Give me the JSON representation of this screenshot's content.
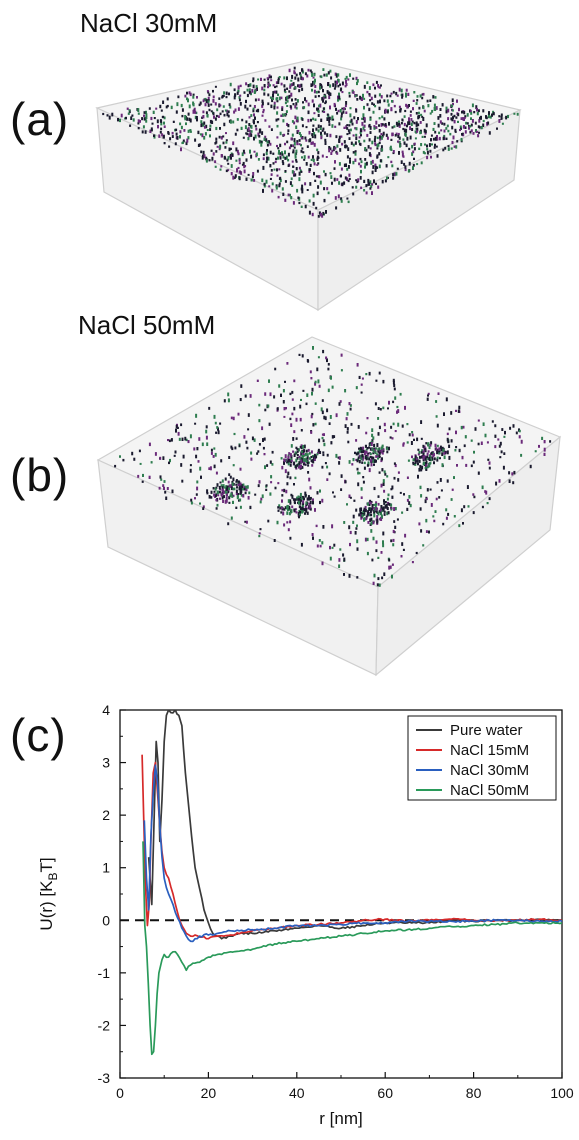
{
  "panels": {
    "a": {
      "letter": "(a)",
      "title": "NaCl 30mM"
    },
    "b": {
      "letter": "(b)",
      "title": "NaCl 50mM"
    },
    "c": {
      "letter": "(c)"
    }
  },
  "colors": {
    "box_edge": "#cfcfcf",
    "box_face": "#f1f1f1",
    "particle_dark": "#1a1a2e",
    "particle_green": "#2e7d4f",
    "particle_purple": "#6b2a7a"
  },
  "chart_data": {
    "type": "line",
    "xlabel": "r [nm]",
    "ylabel_main": "U(r) [K",
    "ylabel_sub": "B",
    "ylabel_tail": "T]",
    "xlim": [
      0,
      100
    ],
    "ylim": [
      -3,
      4
    ],
    "x_ticks": [
      0,
      20,
      40,
      60,
      80,
      100
    ],
    "y_ticks": [
      -3,
      -2,
      -1,
      0,
      1,
      2,
      3,
      4
    ],
    "reference_line": {
      "y": 0,
      "style": "dashed"
    },
    "legend_position": "top-right",
    "series": [
      {
        "name": "Pure water",
        "color": "#3a3a3a",
        "x": [
          6.5,
          7.2,
          7.8,
          8.2,
          8.6,
          9.0,
          9.5,
          10,
          10.5,
          11,
          11.5,
          12.5,
          13.3,
          14.0,
          14.8,
          15.5,
          16.2,
          17.0,
          18.0,
          19.0,
          20.0,
          21.0,
          22.0,
          23,
          25,
          27,
          30,
          35,
          40,
          45,
          50,
          55,
          60,
          65,
          70,
          75,
          80,
          85,
          90,
          95,
          100
        ],
        "y": [
          1.2,
          0.3,
          2.2,
          3.4,
          3.0,
          1.5,
          2.3,
          3.4,
          3.9,
          4.0,
          3.95,
          4.0,
          3.9,
          3.7,
          2.8,
          2.2,
          1.6,
          1.0,
          0.6,
          0.2,
          -0.05,
          -0.25,
          -0.3,
          -0.35,
          -0.3,
          -0.25,
          -0.25,
          -0.2,
          -0.15,
          -0.1,
          -0.15,
          -0.1,
          -0.05,
          -0.05,
          -0.05,
          0.0,
          -0.02,
          0.0,
          0.0,
          0.02,
          0.0
        ]
      },
      {
        "name": "NaCl 15mM",
        "color": "#d62a2a",
        "x": [
          5.0,
          5.4,
          5.8,
          6.2,
          6.6,
          7.0,
          7.5,
          8.0,
          8.5,
          9.0,
          9.5,
          10,
          11,
          12,
          13,
          14,
          15,
          16,
          17,
          18,
          20,
          22,
          25,
          30,
          35,
          40,
          45,
          50,
          55,
          60,
          65,
          70,
          75,
          80,
          85,
          90,
          95,
          100
        ],
        "y": [
          3.15,
          1.8,
          0.6,
          -0.1,
          0.3,
          1.5,
          2.8,
          3.0,
          2.4,
          1.8,
          1.3,
          1.0,
          0.8,
          0.5,
          0.15,
          -0.1,
          -0.25,
          -0.3,
          -0.28,
          -0.32,
          -0.35,
          -0.3,
          -0.28,
          -0.2,
          -0.15,
          -0.1,
          -0.08,
          -0.05,
          0.0,
          0.02,
          -0.02,
          0.0,
          0.02,
          0.0,
          0.0,
          0.0,
          0.02,
          0.0
        ]
      },
      {
        "name": "NaCl 30mM",
        "color": "#2a5fbf",
        "x": [
          5.5,
          6.0,
          6.5,
          7.0,
          7.5,
          8.0,
          8.5,
          9.0,
          9.5,
          10,
          11,
          12,
          13,
          14,
          15,
          16,
          17,
          18,
          20,
          22,
          25,
          30,
          35,
          40,
          45,
          50,
          55,
          60,
          65,
          70,
          75,
          80,
          85,
          90,
          95,
          100
        ],
        "y": [
          1.9,
          0.8,
          0.2,
          1.6,
          2.4,
          2.95,
          2.6,
          1.8,
          1.2,
          0.8,
          0.5,
          0.3,
          0.05,
          -0.15,
          -0.3,
          -0.4,
          -0.35,
          -0.3,
          -0.28,
          -0.25,
          -0.2,
          -0.18,
          -0.15,
          -0.1,
          -0.1,
          -0.08,
          -0.05,
          -0.05,
          -0.02,
          -0.02,
          -0.02,
          -0.02,
          0.0,
          0.0,
          -0.02,
          -0.02
        ]
      },
      {
        "name": "NaCl 50mM",
        "color": "#2a9a5a",
        "x": [
          5.2,
          5.6,
          6.0,
          6.4,
          6.8,
          7.2,
          7.6,
          8.0,
          8.4,
          8.8,
          9.5,
          10,
          11,
          12,
          13,
          14,
          15,
          16,
          18,
          20,
          22,
          25,
          30,
          35,
          40,
          45,
          50,
          55,
          60,
          65,
          70,
          75,
          80,
          85,
          90,
          95,
          100
        ],
        "y": [
          1.5,
          -0.1,
          -0.5,
          -1.2,
          -2.0,
          -2.55,
          -2.5,
          -2.0,
          -1.4,
          -1.0,
          -0.75,
          -0.65,
          -0.7,
          -0.6,
          -0.65,
          -0.8,
          -0.95,
          -0.85,
          -0.8,
          -0.7,
          -0.65,
          -0.6,
          -0.55,
          -0.45,
          -0.4,
          -0.35,
          -0.3,
          -0.25,
          -0.2,
          -0.18,
          -0.15,
          -0.12,
          -0.1,
          -0.08,
          -0.05,
          -0.05,
          -0.05
        ]
      }
    ]
  }
}
